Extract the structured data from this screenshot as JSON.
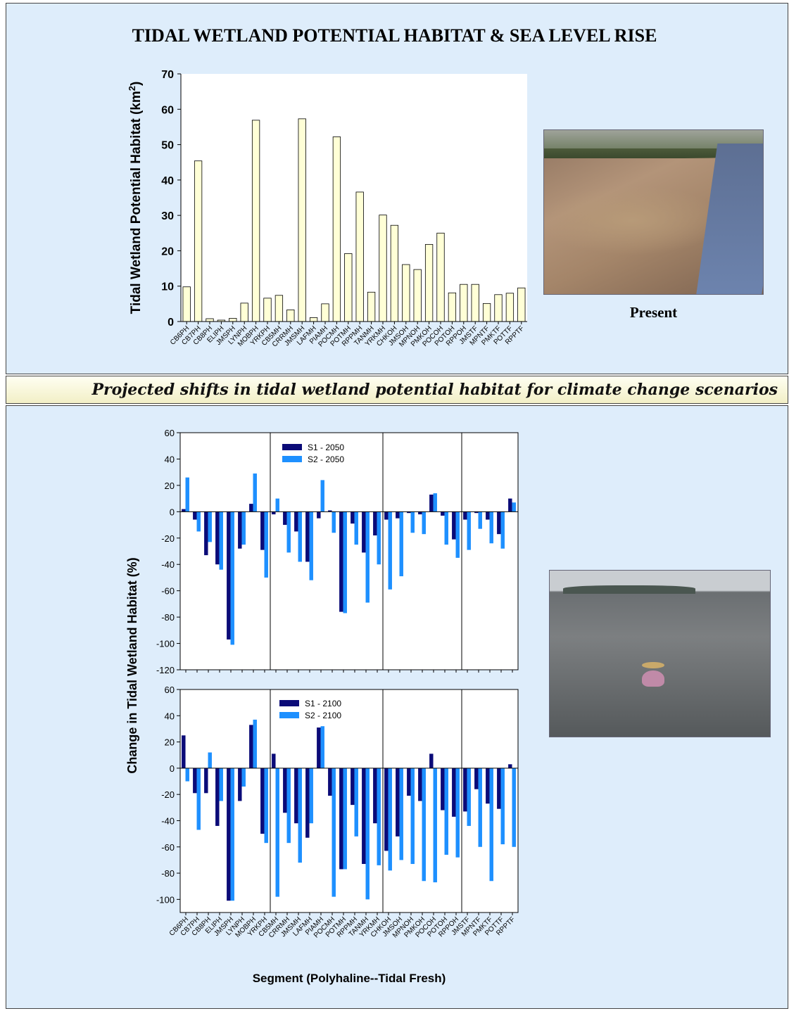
{
  "title": "TIDAL WETLAND POTENTIAL HABITAT & SEA LEVEL RISE",
  "banner": "Projected shifts in tidal wetland potential habitat for climate change scenarios",
  "photo_caption_present": "Present",
  "photos": [
    {
      "name": "present-wetland-aerial-photo",
      "depicts": "aerial view of tidal wetland marsh and river"
    },
    {
      "name": "submerged-wetland-photo",
      "depicts": "person swimming in open water"
    }
  ],
  "colors": {
    "bar_fill": "#ffffd6",
    "s1": "#0b0b78",
    "s2": "#1e90ff",
    "panel": "#deedfb",
    "banner": "#f6f3cf"
  },
  "chart_data": [
    {
      "type": "bar",
      "id": "present-habitat",
      "title": "",
      "ylabel": "Tidal Wetland Potential Habitat (km",
      "ylabel_sup": "2",
      "ylabel_close": ")",
      "xlabel": "",
      "ylim": [
        0,
        70
      ],
      "yticks": [
        0,
        10,
        20,
        30,
        40,
        50,
        60,
        70
      ],
      "categories": [
        "CB6PH",
        "CB7PH",
        "CB8PH",
        "ELIPH",
        "JMSPH",
        "LYNPH",
        "MOBPH",
        "YRKPH",
        "CB5MH",
        "CRRMH",
        "JMSMH",
        "LAFMH",
        "PIAMH",
        "POCMH",
        "POTMH",
        "RPPMH",
        "TANMH",
        "YRKMH",
        "CHKOH",
        "JMSOH",
        "MPNOH",
        "PMKOH",
        "POCOH",
        "POTOH",
        "RPPOH",
        "JMSTF",
        "MPNTF",
        "PMKTF",
        "POTTF",
        "RPPTF"
      ],
      "values": [
        9.8,
        45.4,
        0.8,
        0.4,
        0.9,
        5.2,
        56.9,
        6.6,
        7.4,
        3.3,
        57.3,
        1.1,
        5.0,
        52.2,
        19.2,
        36.6,
        8.3,
        30.1,
        27.2,
        16.1,
        14.7,
        21.8,
        25.0,
        8.1,
        10.5,
        10.5,
        5.1,
        7.6,
        8.0,
        9.5
      ]
    },
    {
      "type": "bar",
      "id": "change-2050",
      "title": "",
      "ylabel": "",
      "xlabel": "",
      "ylim": [
        -120,
        60
      ],
      "yticks": [
        -120,
        -100,
        -80,
        -60,
        -40,
        -20,
        0,
        20,
        40,
        60
      ],
      "legend": "top-left",
      "group_dividers_after": [
        8,
        18,
        25
      ],
      "categories": [
        "CB6PH",
        "CB7PH",
        "CB8PH",
        "ELIPH",
        "JMSPH",
        "LYNPH",
        "MOBPH",
        "YRKPH",
        "CB5MH",
        "CRRMH",
        "JMSMH",
        "LAFMH",
        "PIAMH",
        "POCMH",
        "POTMH",
        "RPPMH",
        "TANMH",
        "YRKMH",
        "CHKOH",
        "JMSOH",
        "MPNOH",
        "PMKOH",
        "POCOH",
        "POTOH",
        "RPPOH",
        "JMSTF",
        "MPNTF",
        "PMKTF",
        "POTTF",
        "RPPTF"
      ],
      "series": [
        {
          "name": "S1 - 2050",
          "values": [
            2,
            -6,
            -33,
            -40,
            -97,
            -28,
            6,
            -29,
            -2,
            -10,
            -15,
            -38,
            -5,
            1,
            -76,
            -9,
            -31,
            -18,
            -6,
            -5,
            -1,
            -2,
            13,
            -3,
            -21,
            -6,
            -1,
            -6,
            -17,
            10
          ]
        },
        {
          "name": "S2 - 2050",
          "values": [
            26,
            -15,
            -23,
            -44,
            -101,
            -25,
            29,
            -50,
            10,
            -31,
            -38,
            -52,
            24,
            -16,
            -77,
            -25,
            -69,
            -40,
            -59,
            -49,
            -16,
            -17,
            14,
            -25,
            -35,
            -29,
            -13,
            -24,
            -28,
            7
          ]
        }
      ]
    },
    {
      "type": "bar",
      "id": "change-2100",
      "title": "",
      "ylabel": "Change in Tidal Wetland Habitat (%)",
      "xlabel": "Segment (Polyhaline--Tidal Fresh)",
      "ylim": [
        -110,
        60
      ],
      "yticks": [
        -100,
        -80,
        -60,
        -40,
        -20,
        0,
        20,
        40,
        60
      ],
      "legend": "top-left",
      "group_dividers_after": [
        8,
        18,
        25
      ],
      "categories": [
        "CB6PH",
        "CB7PH",
        "CB8PH",
        "ELIPH",
        "JMSPH",
        "LYNPH",
        "MOBPH",
        "YRKPH",
        "CB5MH",
        "CRRMH",
        "JMSMH",
        "LAFMH",
        "PIAMH",
        "POCMH",
        "POTMH",
        "RPPMH",
        "TANMH",
        "YRKMH",
        "CHKOH",
        "JMSOH",
        "MPNOH",
        "PMKOH",
        "POCOH",
        "POTOH",
        "RPPOH",
        "JMSTF",
        "MPNTF",
        "PMKTF",
        "POTTF",
        "RPPTF"
      ],
      "series": [
        {
          "name": "S1 - 2100",
          "values": [
            25,
            -19,
            -19,
            -44,
            -101,
            -25,
            33,
            -50,
            11,
            -34,
            -42,
            -53,
            31,
            -21,
            -77,
            -28,
            -73,
            -42,
            -63,
            -52,
            -21,
            -25,
            11,
            -32,
            -37,
            -33,
            -16,
            -27,
            -31,
            3
          ]
        },
        {
          "name": "S2 - 2100",
          "values": [
            -10,
            -47,
            12,
            -25,
            -101,
            -14,
            37,
            -57,
            -98,
            -57,
            -72,
            -42,
            32,
            -98,
            -77,
            -52,
            -100,
            -74,
            -78,
            -70,
            -73,
            -86,
            -87,
            -66,
            -68,
            -44,
            -60,
            -86,
            -58,
            -60
          ]
        }
      ]
    }
  ]
}
